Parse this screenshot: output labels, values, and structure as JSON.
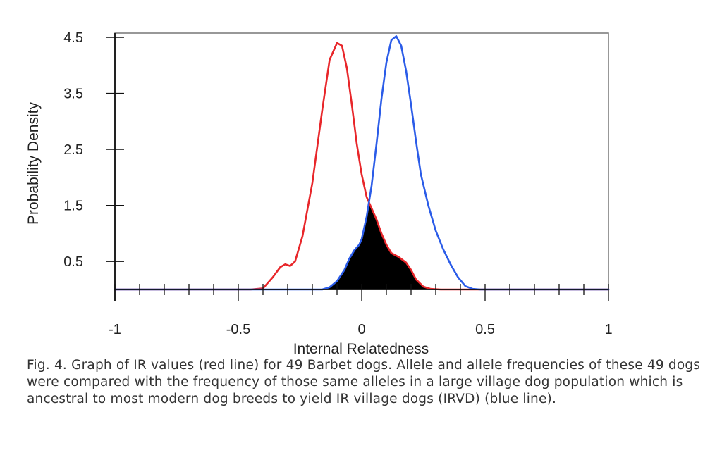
{
  "chart_data": {
    "type": "line",
    "xlabel": "Internal Relatedness",
    "ylabel": "Probability Density",
    "xlim": [
      -1,
      1
    ],
    "ylim": [
      0,
      4.5
    ],
    "x_ticks": [
      "-1",
      "-0.5",
      "0",
      "0.5",
      "1"
    ],
    "y_ticks": [
      "0.5",
      "1.5",
      "2.5",
      "3.5",
      "4.5"
    ],
    "grid": false,
    "legend": "none",
    "series": [
      {
        "color": "#e8262a",
        "x": [
          -1.0,
          -0.45,
          -0.4,
          -0.36,
          -0.33,
          -0.31,
          -0.29,
          -0.27,
          -0.24,
          -0.2,
          -0.16,
          -0.13,
          -0.1,
          -0.08,
          -0.06,
          -0.04,
          -0.02,
          0.0,
          0.02,
          0.04,
          0.06,
          0.08,
          0.1,
          0.12,
          0.15,
          0.18,
          0.2,
          0.22,
          0.25,
          0.28,
          0.32,
          1.0
        ],
        "y": [
          0.0,
          0.0,
          0.02,
          0.22,
          0.4,
          0.45,
          0.42,
          0.5,
          0.95,
          1.9,
          3.2,
          4.1,
          4.4,
          4.35,
          3.95,
          3.3,
          2.6,
          2.05,
          1.65,
          1.45,
          1.25,
          1.0,
          0.8,
          0.65,
          0.58,
          0.48,
          0.35,
          0.18,
          0.05,
          0.01,
          0.0,
          0.0
        ]
      },
      {
        "color": "#2b5ce8",
        "x": [
          -1.0,
          -0.16,
          -0.13,
          -0.1,
          -0.07,
          -0.05,
          -0.03,
          -0.01,
          0.0,
          0.02,
          0.04,
          0.06,
          0.08,
          0.1,
          0.12,
          0.14,
          0.16,
          0.18,
          0.2,
          0.22,
          0.24,
          0.27,
          0.3,
          0.33,
          0.36,
          0.39,
          0.42,
          0.45,
          0.48,
          1.0
        ],
        "y": [
          0.0,
          0.0,
          0.04,
          0.15,
          0.35,
          0.55,
          0.7,
          0.8,
          0.9,
          1.3,
          1.85,
          2.6,
          3.4,
          4.05,
          4.45,
          4.52,
          4.35,
          3.9,
          3.3,
          2.65,
          2.05,
          1.5,
          1.05,
          0.72,
          0.45,
          0.22,
          0.06,
          0.01,
          0.0,
          0.0
        ]
      }
    ],
    "overlap_fill_color": "#000000"
  },
  "caption": "Fig. 4. Graph of IR values (red line) for 49 Barbet dogs. Allele and allele frequencies of these 49 dogs were compared with the frequency of those same alleles in a large village dog population which is ancestral to most modern dog breeds to yield IR village dogs (IRVD) (blue line)."
}
